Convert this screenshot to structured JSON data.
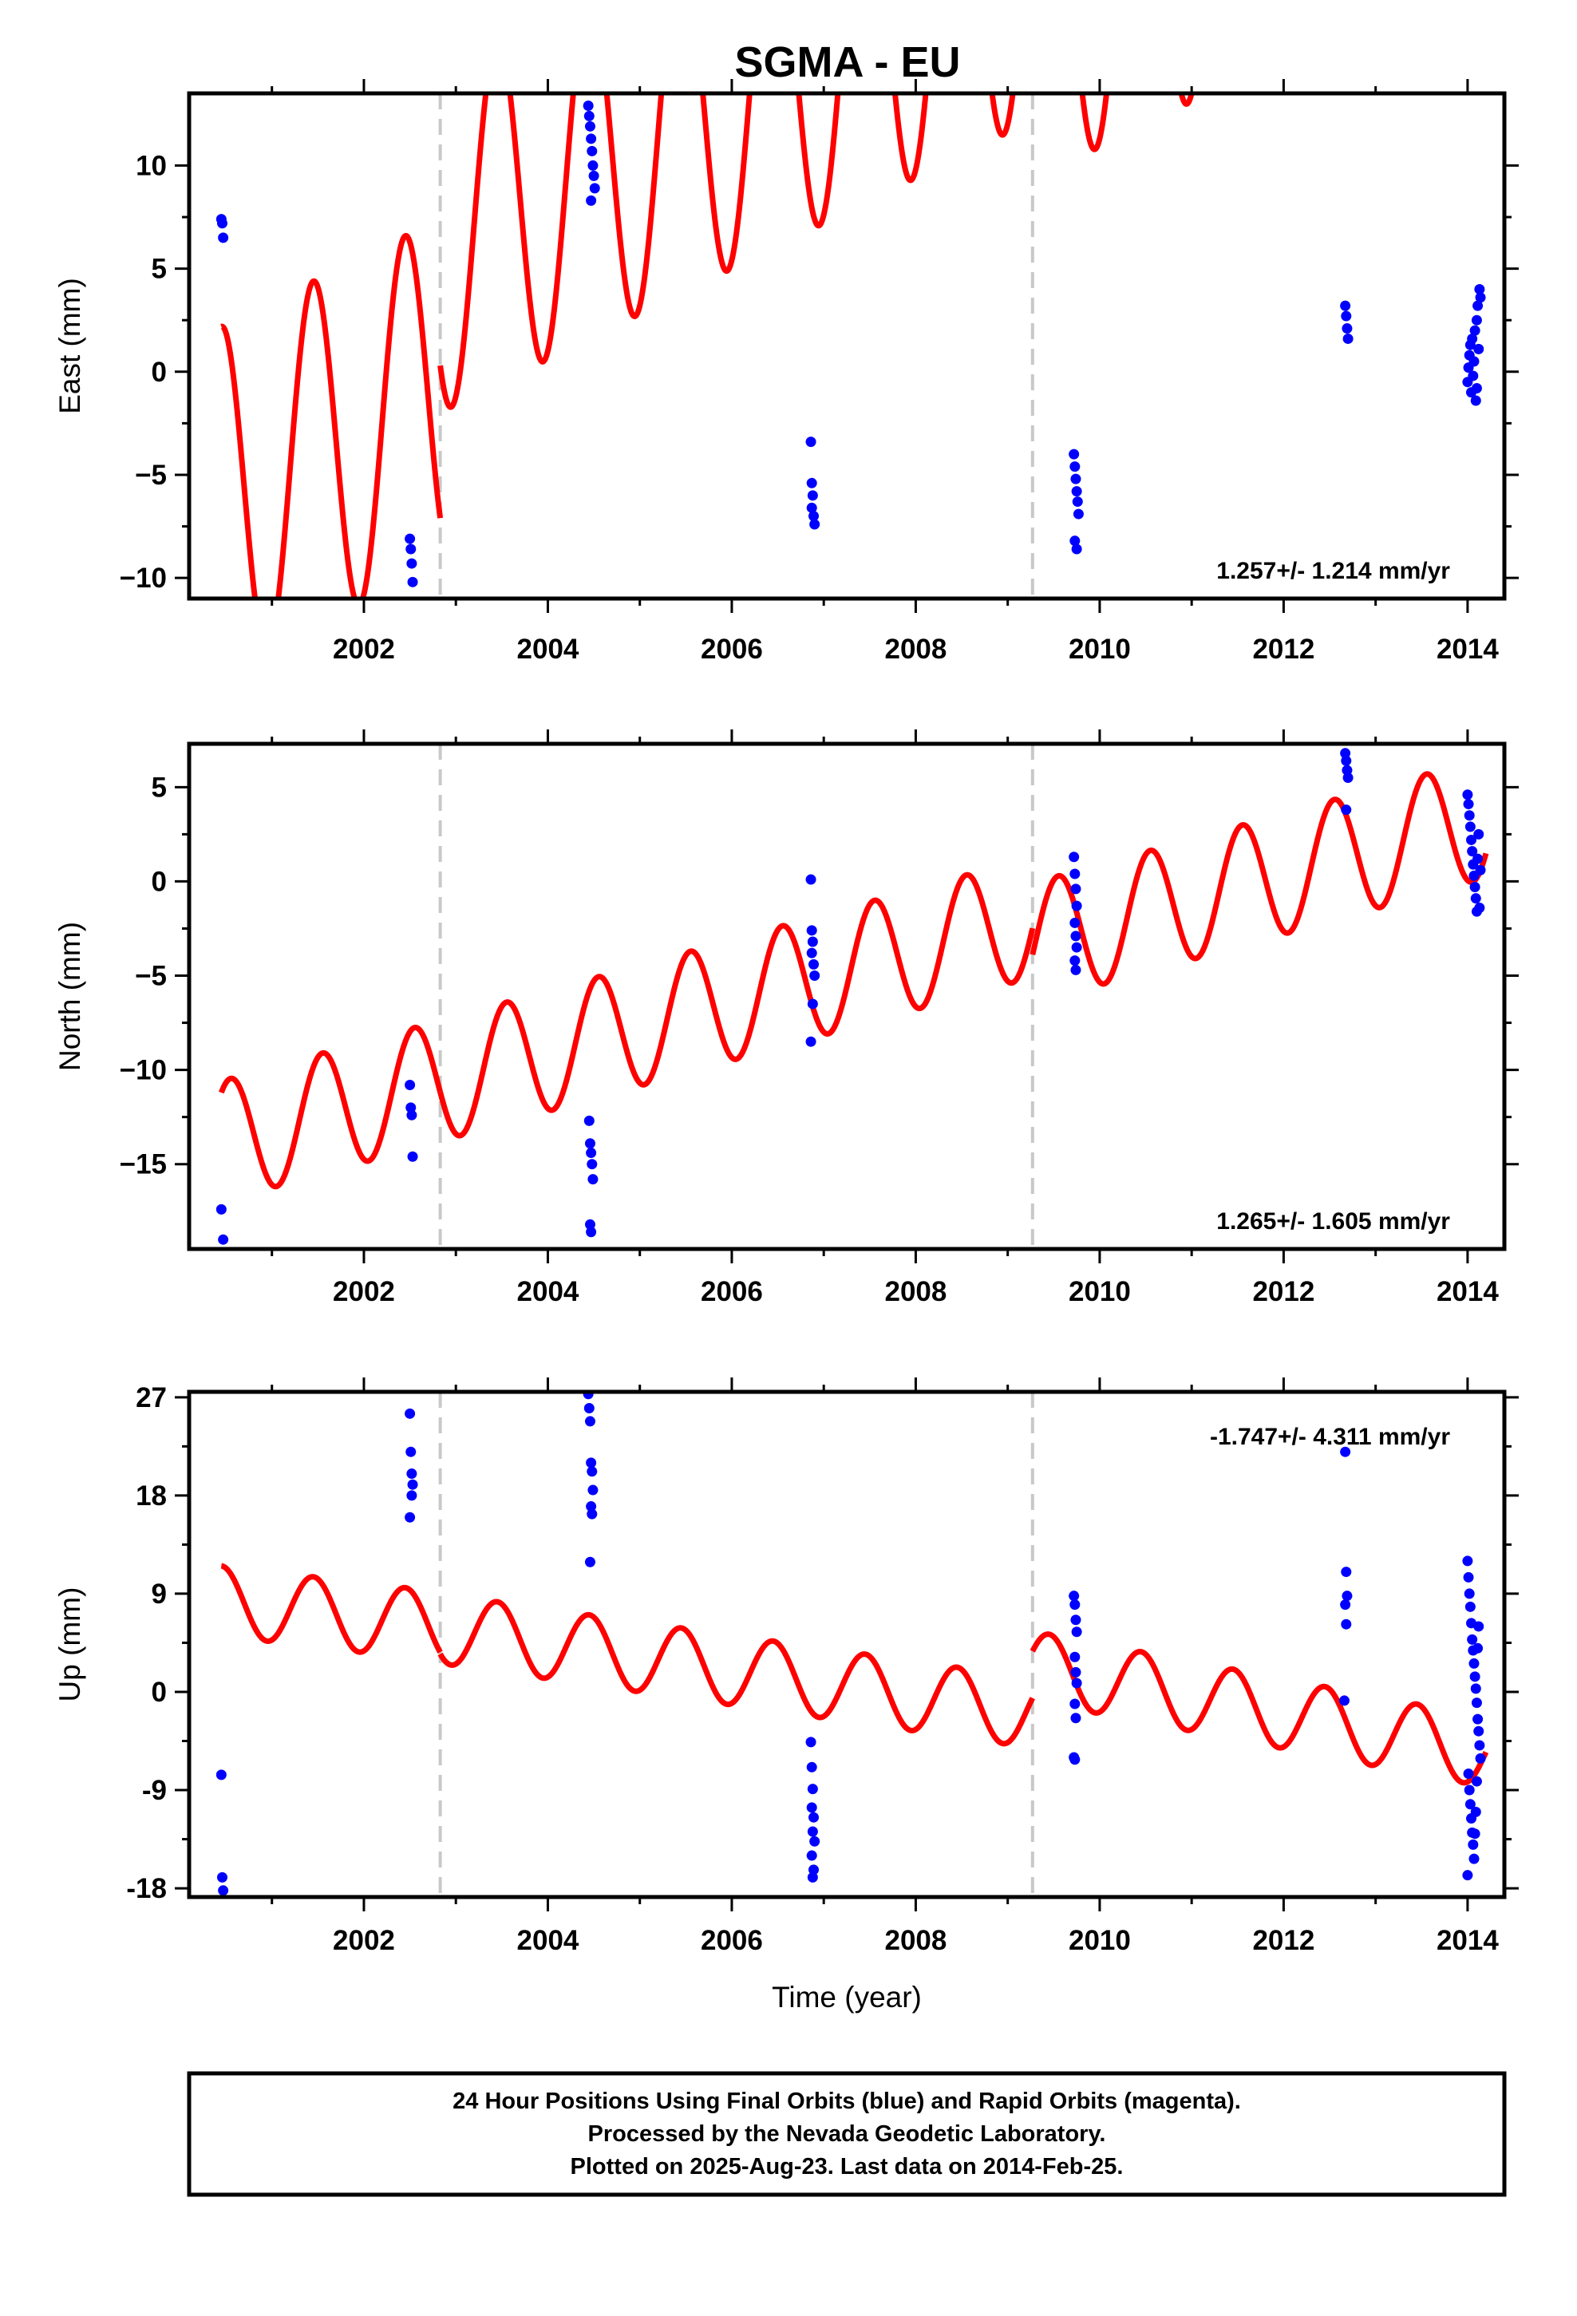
{
  "title": "SGMA - EU",
  "colors": {
    "model": "#ff0000",
    "final_orbits": "#0000ff",
    "offset_line": "#c8c8c8",
    "frame": "#000000"
  },
  "footer": {
    "lines": [
      "24 Hour Positions Using Final Orbits (blue) and Rapid Orbits (magenta).",
      "Processed by the Nevada Geodetic Laboratory.",
      "Plotted on 2025-Aug-23. Last data on 2014-Feb-25."
    ]
  },
  "chart_data": [
    {
      "type": "scatter",
      "component": "east",
      "ylabel": "East (mm)",
      "xlabel": "",
      "xlim": [
        2000.1,
        2014.4
      ],
      "ylim": [
        -11.0,
        13.5
      ],
      "xticks": [
        "2002",
        "2004",
        "2006",
        "2008",
        "2010",
        "2012",
        "2014"
      ],
      "yticks": [
        "10",
        "5",
        "0",
        "−5",
        "−10"
      ],
      "ytick_values": [
        10,
        5,
        0,
        -5,
        -10
      ],
      "rate": "1.257+/- 1.214 mm/yr",
      "offsets": [
        2002.83,
        2009.27
      ],
      "model": {
        "amplitude": 8.4,
        "phase_year": 2000.45,
        "segments": [
          {
            "start": 2000.45,
            "end": 2002.83,
            "intercept": -7.2,
            "slope": 2.2
          },
          {
            "start": 2002.83,
            "end": 2009.27,
            "intercept": 0.2,
            "slope": 2.2
          },
          {
            "start": 2009.27,
            "end": 2014.2,
            "intercept": -2.7,
            "slope": 2.2
          }
        ]
      },
      "points": [
        [
          2000.45,
          7.4
        ],
        [
          2000.46,
          7.2
        ],
        [
          2000.47,
          6.5
        ],
        [
          2002.5,
          -8.1
        ],
        [
          2002.51,
          -8.6
        ],
        [
          2002.52,
          -9.3
        ],
        [
          2002.53,
          -10.2
        ],
        [
          2004.44,
          12.9
        ],
        [
          2004.45,
          12.4
        ],
        [
          2004.46,
          11.9
        ],
        [
          2004.47,
          11.3
        ],
        [
          2004.48,
          10.7
        ],
        [
          2004.49,
          10.0
        ],
        [
          2004.5,
          9.5
        ],
        [
          2004.51,
          8.9
        ],
        [
          2004.47,
          8.3
        ],
        [
          2006.86,
          -3.4
        ],
        [
          2006.87,
          -5.4
        ],
        [
          2006.88,
          -6.0
        ],
        [
          2006.87,
          -6.6
        ],
        [
          2006.89,
          -7.0
        ],
        [
          2006.9,
          -7.4
        ],
        [
          2009.72,
          -4.0
        ],
        [
          2009.73,
          -4.6
        ],
        [
          2009.74,
          -5.2
        ],
        [
          2009.75,
          -5.8
        ],
        [
          2009.76,
          -6.3
        ],
        [
          2009.77,
          -6.9
        ],
        [
          2009.73,
          -8.2
        ],
        [
          2009.75,
          -8.6
        ],
        [
          2012.67,
          3.2
        ],
        [
          2012.68,
          2.7
        ],
        [
          2012.69,
          2.1
        ],
        [
          2012.7,
          1.6
        ],
        [
          2014.0,
          -0.5
        ],
        [
          2014.01,
          0.2
        ],
        [
          2014.02,
          0.8
        ],
        [
          2014.03,
          1.3
        ],
        [
          2014.04,
          -1.0
        ],
        [
          2014.05,
          1.6
        ],
        [
          2014.06,
          -0.2
        ],
        [
          2014.07,
          0.5
        ],
        [
          2014.08,
          2.0
        ],
        [
          2014.09,
          -1.4
        ],
        [
          2014.1,
          2.5
        ],
        [
          2014.11,
          3.2
        ],
        [
          2014.12,
          1.1
        ],
        [
          2014.13,
          4.0
        ],
        [
          2014.14,
          3.6
        ],
        [
          2014.1,
          -0.8
        ]
      ]
    },
    {
      "type": "scatter",
      "component": "north",
      "ylabel": "North (mm)",
      "xlabel": "",
      "xlim": [
        2000.1,
        2014.4
      ],
      "ylim": [
        -19.5,
        7.3
      ],
      "xticks": [
        "2002",
        "2004",
        "2006",
        "2008",
        "2010",
        "2012",
        "2014"
      ],
      "yticks": [
        "5",
        "0",
        "−5",
        "−10",
        "−15"
      ],
      "ytick_values": [
        5,
        0,
        -5,
        -10,
        -15
      ],
      "rate": "1.265+/- 1.605 mm/yr",
      "offsets": [
        2002.83,
        2009.27
      ],
      "model": {
        "amplitude": 3.2,
        "phase_year": 2000.55,
        "segments": [
          {
            "start": 2000.45,
            "end": 2002.83,
            "intercept": -14.4,
            "slope": 1.35
          },
          {
            "start": 2002.83,
            "end": 2009.27,
            "intercept": -14.4,
            "slope": 1.35
          },
          {
            "start": 2009.27,
            "end": 2014.2,
            "intercept": -15.8,
            "slope": 1.35
          }
        ]
      },
      "points": [
        [
          2000.45,
          -17.4
        ],
        [
          2000.47,
          -19.0
        ],
        [
          2002.5,
          -10.8
        ],
        [
          2002.51,
          -12.0
        ],
        [
          2002.52,
          -12.4
        ],
        [
          2002.53,
          -14.6
        ],
        [
          2004.45,
          -12.7
        ],
        [
          2004.46,
          -13.9
        ],
        [
          2004.47,
          -14.4
        ],
        [
          2004.48,
          -15.0
        ],
        [
          2004.49,
          -15.8
        ],
        [
          2004.46,
          -18.2
        ],
        [
          2004.47,
          -18.6
        ],
        [
          2006.86,
          0.1
        ],
        [
          2006.87,
          -2.6
        ],
        [
          2006.88,
          -3.2
        ],
        [
          2006.87,
          -3.8
        ],
        [
          2006.89,
          -4.4
        ],
        [
          2006.9,
          -5.0
        ],
        [
          2006.88,
          -6.5
        ],
        [
          2006.86,
          -8.5
        ],
        [
          2009.72,
          1.3
        ],
        [
          2009.73,
          0.4
        ],
        [
          2009.74,
          -0.4
        ],
        [
          2009.75,
          -1.3
        ],
        [
          2009.73,
          -2.2
        ],
        [
          2009.74,
          -2.9
        ],
        [
          2009.75,
          -3.5
        ],
        [
          2009.73,
          -4.2
        ],
        [
          2009.74,
          -4.7
        ],
        [
          2012.67,
          6.8
        ],
        [
          2012.68,
          6.4
        ],
        [
          2012.69,
          5.9
        ],
        [
          2012.7,
          5.5
        ],
        [
          2012.68,
          3.8
        ],
        [
          2014.0,
          4.6
        ],
        [
          2014.01,
          4.1
        ],
        [
          2014.02,
          3.5
        ],
        [
          2014.03,
          2.9
        ],
        [
          2014.04,
          2.2
        ],
        [
          2014.05,
          1.6
        ],
        [
          2014.06,
          0.9
        ],
        [
          2014.07,
          0.3
        ],
        [
          2014.08,
          -0.3
        ],
        [
          2014.09,
          -0.9
        ],
        [
          2014.1,
          -1.6
        ],
        [
          2014.11,
          1.2
        ],
        [
          2014.12,
          2.5
        ],
        [
          2014.13,
          -1.4
        ],
        [
          2014.14,
          0.6
        ]
      ]
    },
    {
      "type": "scatter",
      "component": "up",
      "ylabel": "Up (mm)",
      "xlabel": "Time (year)",
      "xlim": [
        2000.1,
        2014.4
      ],
      "ylim": [
        -18.8,
        27.5
      ],
      "xticks": [
        "2002",
        "2004",
        "2006",
        "2008",
        "2010",
        "2012",
        "2014"
      ],
      "yticks": [
        "27",
        "18",
        "9",
        "0",
        "-9",
        "-18"
      ],
      "ytick_values": [
        27,
        18,
        9,
        0,
        -9,
        -18
      ],
      "rate": "-1.747+/- 4.311 mm/yr",
      "offsets": [
        2002.83,
        2009.27
      ],
      "model": {
        "amplitude": 3.2,
        "phase_year": 2000.45,
        "segments": [
          {
            "start": 2000.45,
            "end": 2002.83,
            "intercept": 8.8,
            "slope": -1.0
          },
          {
            "start": 2002.83,
            "end": 2009.27,
            "intercept": 9.2,
            "slope": -1.2
          },
          {
            "start": 2009.27,
            "end": 2014.2,
            "intercept": 17.2,
            "slope": -1.6
          }
        ]
      },
      "points": [
        [
          2000.45,
          -7.6
        ],
        [
          2000.46,
          -17.0
        ],
        [
          2000.47,
          -18.2
        ],
        [
          2002.5,
          25.5
        ],
        [
          2002.51,
          22.0
        ],
        [
          2002.52,
          20.0
        ],
        [
          2002.53,
          19.0
        ],
        [
          2002.52,
          18.0
        ],
        [
          2002.5,
          16.0
        ],
        [
          2004.44,
          27.3
        ],
        [
          2004.45,
          26.0
        ],
        [
          2004.46,
          24.8
        ],
        [
          2004.47,
          21.0
        ],
        [
          2004.48,
          20.2
        ],
        [
          2004.49,
          18.5
        ],
        [
          2004.47,
          17.0
        ],
        [
          2004.48,
          16.3
        ],
        [
          2004.46,
          11.9
        ],
        [
          2006.86,
          -4.6
        ],
        [
          2006.87,
          -6.9
        ],
        [
          2006.88,
          -8.9
        ],
        [
          2006.87,
          -10.6
        ],
        [
          2006.89,
          -11.5
        ],
        [
          2006.88,
          -12.8
        ],
        [
          2006.9,
          -13.7
        ],
        [
          2006.87,
          -15.0
        ],
        [
          2006.89,
          -16.3
        ],
        [
          2006.88,
          -17.0
        ],
        [
          2009.72,
          8.8
        ],
        [
          2009.73,
          8.0
        ],
        [
          2009.74,
          6.6
        ],
        [
          2009.75,
          5.5
        ],
        [
          2009.73,
          3.2
        ],
        [
          2009.74,
          1.8
        ],
        [
          2009.75,
          0.8
        ],
        [
          2009.73,
          -1.1
        ],
        [
          2009.74,
          -2.4
        ],
        [
          2009.72,
          -6.0
        ],
        [
          2009.73,
          -6.2
        ],
        [
          2012.67,
          22.0
        ],
        [
          2012.68,
          11.0
        ],
        [
          2012.69,
          8.8
        ],
        [
          2012.67,
          8.0
        ],
        [
          2012.68,
          6.2
        ],
        [
          2012.66,
          -0.8
        ],
        [
          2014.0,
          12.0
        ],
        [
          2014.01,
          10.5
        ],
        [
          2014.02,
          9.0
        ],
        [
          2014.03,
          7.8
        ],
        [
          2014.04,
          6.3
        ],
        [
          2014.05,
          4.8
        ],
        [
          2014.06,
          3.8
        ],
        [
          2014.07,
          2.6
        ],
        [
          2014.08,
          1.4
        ],
        [
          2014.09,
          0.3
        ],
        [
          2014.1,
          -1.0
        ],
        [
          2014.11,
          -2.5
        ],
        [
          2014.12,
          -3.6
        ],
        [
          2014.13,
          -4.9
        ],
        [
          2014.14,
          -6.1
        ],
        [
          2014.01,
          -7.5
        ],
        [
          2014.02,
          -9.0
        ],
        [
          2014.03,
          -10.3
        ],
        [
          2014.04,
          -11.6
        ],
        [
          2014.05,
          -12.9
        ],
        [
          2014.06,
          -14.0
        ],
        [
          2014.07,
          -15.3
        ],
        [
          2014.0,
          -16.8
        ],
        [
          2014.08,
          -13.0
        ],
        [
          2014.09,
          -11.0
        ],
        [
          2014.1,
          -8.2
        ],
        [
          2014.11,
          4.0
        ],
        [
          2014.12,
          6.0
        ]
      ]
    }
  ]
}
